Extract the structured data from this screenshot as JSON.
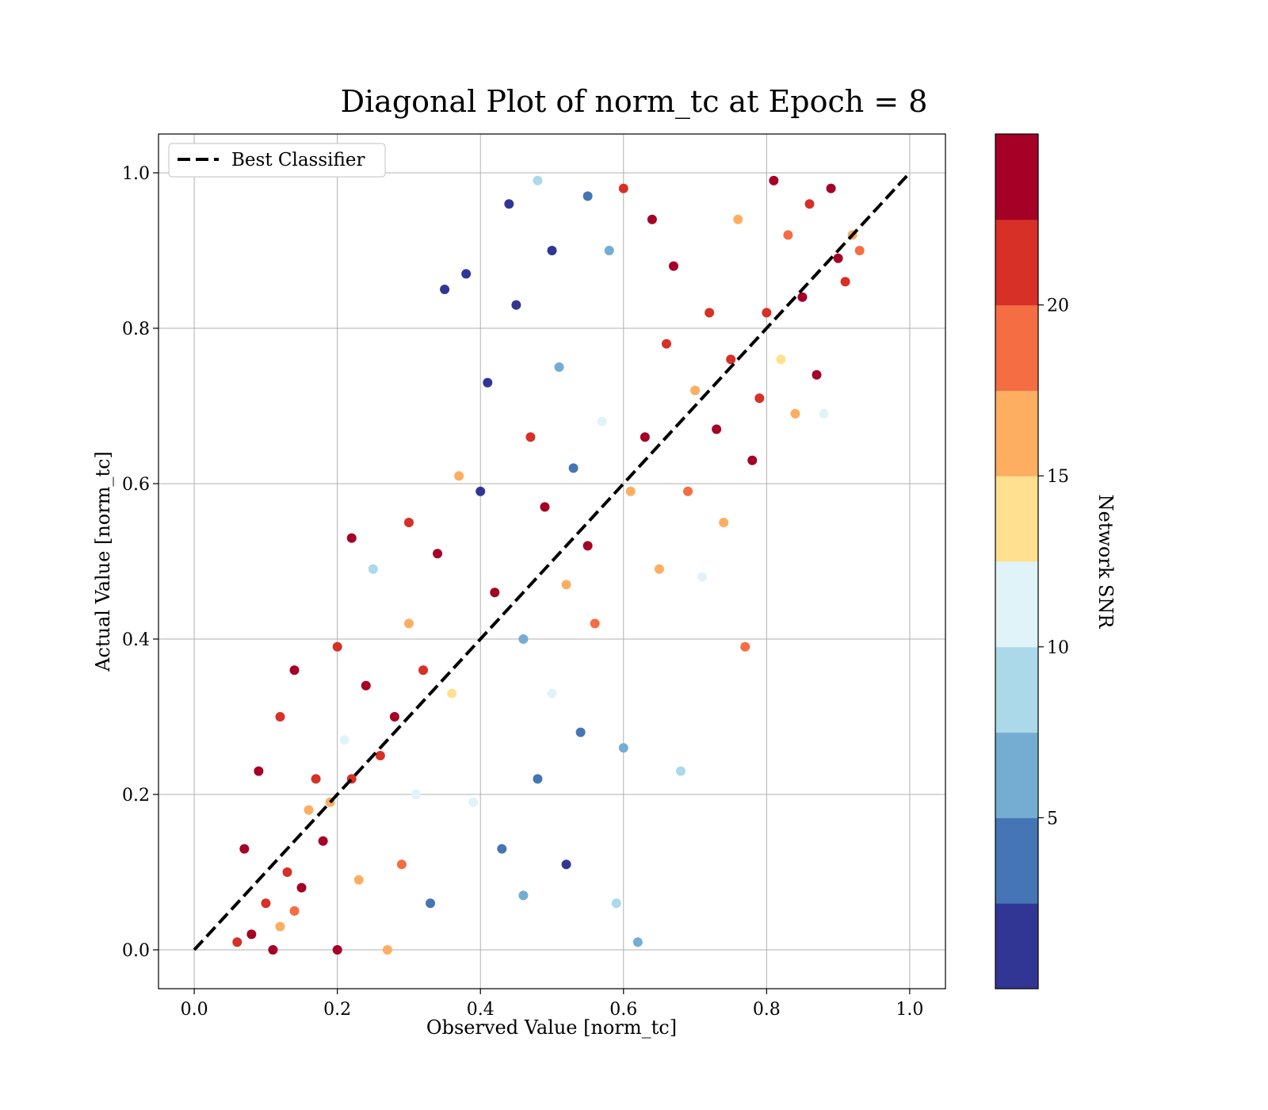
{
  "chart_data": {
    "type": "scatter",
    "title": "Diagonal Plot of norm_tc at Epoch = 8",
    "xlabel": "Observed Value [norm_tc]",
    "ylabel": "Actual Value [norm_tc]",
    "xlim": [
      -0.05,
      1.05
    ],
    "ylim": [
      -0.05,
      1.05
    ],
    "xticks": [
      "0.0",
      "0.2",
      "0.4",
      "0.6",
      "0.8",
      "1.0"
    ],
    "yticks": [
      "0.0",
      "0.2",
      "0.4",
      "0.6",
      "0.8",
      "1.0"
    ],
    "grid": true,
    "legend": {
      "position": "upper-left",
      "entries": [
        "Best Classifier"
      ]
    },
    "reference_line": {
      "name": "Best Classifier",
      "x": [
        0,
        1
      ],
      "y": [
        0,
        1
      ],
      "style": "dashed",
      "color": "#000000"
    },
    "colorbar": {
      "label": "Network SNR",
      "range": [
        0,
        25
      ],
      "tick_values": [
        5,
        10,
        15,
        20
      ],
      "tick_labels": [
        "5",
        "10",
        "15",
        "20"
      ],
      "colors": [
        "#313695",
        "#4575b4",
        "#74add1",
        "#abd9e9",
        "#e0f3f8",
        "#fee090",
        "#fdae61",
        "#f46d43",
        "#d73027",
        "#a50026"
      ]
    },
    "series": [
      {
        "color_by": "Network SNR",
        "points": [
          {
            "x": 0.06,
            "y": 0.01,
            "snr": 22
          },
          {
            "x": 0.08,
            "y": 0.02,
            "snr": 24
          },
          {
            "x": 0.07,
            "y": 0.13,
            "snr": 23
          },
          {
            "x": 0.09,
            "y": 0.23,
            "snr": 24
          },
          {
            "x": 0.1,
            "y": 0.06,
            "snr": 20
          },
          {
            "x": 0.12,
            "y": 0.03,
            "snr": 17
          },
          {
            "x": 0.13,
            "y": 0.1,
            "snr": 22
          },
          {
            "x": 0.11,
            "y": 0.0,
            "snr": 24
          },
          {
            "x": 0.14,
            "y": 0.05,
            "snr": 19
          },
          {
            "x": 0.15,
            "y": 0.08,
            "snr": 23
          },
          {
            "x": 0.12,
            "y": 0.3,
            "snr": 22
          },
          {
            "x": 0.14,
            "y": 0.36,
            "snr": 24
          },
          {
            "x": 0.16,
            "y": 0.18,
            "snr": 16
          },
          {
            "x": 0.17,
            "y": 0.22,
            "snr": 21
          },
          {
            "x": 0.18,
            "y": 0.14,
            "snr": 24
          },
          {
            "x": 0.19,
            "y": 0.19,
            "snr": 17
          },
          {
            "x": 0.2,
            "y": 0.0,
            "snr": 24
          },
          {
            "x": 0.2,
            "y": 0.39,
            "snr": 22
          },
          {
            "x": 0.21,
            "y": 0.27,
            "snr": 11
          },
          {
            "x": 0.22,
            "y": 0.22,
            "snr": 20
          },
          {
            "x": 0.22,
            "y": 0.53,
            "snr": 24
          },
          {
            "x": 0.23,
            "y": 0.09,
            "snr": 16
          },
          {
            "x": 0.24,
            "y": 0.34,
            "snr": 23
          },
          {
            "x": 0.25,
            "y": 0.49,
            "snr": 8
          },
          {
            "x": 0.26,
            "y": 0.25,
            "snr": 21
          },
          {
            "x": 0.27,
            "y": 0.0,
            "snr": 17
          },
          {
            "x": 0.28,
            "y": 0.3,
            "snr": 24
          },
          {
            "x": 0.29,
            "y": 0.11,
            "snr": 19
          },
          {
            "x": 0.3,
            "y": 0.42,
            "snr": 15
          },
          {
            "x": 0.3,
            "y": 0.55,
            "snr": 22
          },
          {
            "x": 0.31,
            "y": 0.2,
            "snr": 11
          },
          {
            "x": 0.32,
            "y": 0.36,
            "snr": 22
          },
          {
            "x": 0.33,
            "y": 0.06,
            "snr": 3
          },
          {
            "x": 0.34,
            "y": 0.51,
            "snr": 24
          },
          {
            "x": 0.35,
            "y": 0.85,
            "snr": 1
          },
          {
            "x": 0.36,
            "y": 0.33,
            "snr": 14
          },
          {
            "x": 0.37,
            "y": 0.61,
            "snr": 17
          },
          {
            "x": 0.38,
            "y": 0.87,
            "snr": 2
          },
          {
            "x": 0.39,
            "y": 0.19,
            "snr": 11
          },
          {
            "x": 0.4,
            "y": 0.59,
            "snr": 1
          },
          {
            "x": 0.41,
            "y": 0.73,
            "snr": 2
          },
          {
            "x": 0.42,
            "y": 0.46,
            "snr": 24
          },
          {
            "x": 0.43,
            "y": 0.13,
            "snr": 3
          },
          {
            "x": 0.44,
            "y": 0.96,
            "snr": 2
          },
          {
            "x": 0.45,
            "y": 0.83,
            "snr": 1
          },
          {
            "x": 0.46,
            "y": 0.4,
            "snr": 7
          },
          {
            "x": 0.46,
            "y": 0.07,
            "snr": 6
          },
          {
            "x": 0.47,
            "y": 0.66,
            "snr": 21
          },
          {
            "x": 0.48,
            "y": 0.99,
            "snr": 9
          },
          {
            "x": 0.48,
            "y": 0.22,
            "snr": 3
          },
          {
            "x": 0.49,
            "y": 0.57,
            "snr": 24
          },
          {
            "x": 0.5,
            "y": 0.9,
            "snr": 1
          },
          {
            "x": 0.5,
            "y": 0.33,
            "snr": 11
          },
          {
            "x": 0.51,
            "y": 0.75,
            "snr": 6
          },
          {
            "x": 0.52,
            "y": 0.11,
            "snr": 2
          },
          {
            "x": 0.52,
            "y": 0.47,
            "snr": 15
          },
          {
            "x": 0.53,
            "y": 0.62,
            "snr": 4
          },
          {
            "x": 0.54,
            "y": 0.28,
            "snr": 3
          },
          {
            "x": 0.55,
            "y": 0.97,
            "snr": 4
          },
          {
            "x": 0.55,
            "y": 0.52,
            "snr": 23
          },
          {
            "x": 0.56,
            "y": 0.42,
            "snr": 19
          },
          {
            "x": 0.57,
            "y": 0.68,
            "snr": 10
          },
          {
            "x": 0.58,
            "y": 0.9,
            "snr": 7
          },
          {
            "x": 0.59,
            "y": 0.06,
            "snr": 9
          },
          {
            "x": 0.6,
            "y": 0.26,
            "snr": 6
          },
          {
            "x": 0.6,
            "y": 0.98,
            "snr": 22
          },
          {
            "x": 0.61,
            "y": 0.59,
            "snr": 16
          },
          {
            "x": 0.62,
            "y": 0.01,
            "snr": 5
          },
          {
            "x": 0.63,
            "y": 0.66,
            "snr": 24
          },
          {
            "x": 0.64,
            "y": 0.94,
            "snr": 23
          },
          {
            "x": 0.65,
            "y": 0.49,
            "snr": 17
          },
          {
            "x": 0.66,
            "y": 0.78,
            "snr": 22
          },
          {
            "x": 0.67,
            "y": 0.88,
            "snr": 24
          },
          {
            "x": 0.68,
            "y": 0.23,
            "snr": 9
          },
          {
            "x": 0.69,
            "y": 0.59,
            "snr": 19
          },
          {
            "x": 0.7,
            "y": 0.72,
            "snr": 15
          },
          {
            "x": 0.71,
            "y": 0.48,
            "snr": 12
          },
          {
            "x": 0.72,
            "y": 0.82,
            "snr": 20
          },
          {
            "x": 0.73,
            "y": 0.67,
            "snr": 24
          },
          {
            "x": 0.74,
            "y": 0.55,
            "snr": 17
          },
          {
            "x": 0.75,
            "y": 0.76,
            "snr": 22
          },
          {
            "x": 0.76,
            "y": 0.94,
            "snr": 16
          },
          {
            "x": 0.77,
            "y": 0.39,
            "snr": 19
          },
          {
            "x": 0.78,
            "y": 0.63,
            "snr": 24
          },
          {
            "x": 0.79,
            "y": 0.71,
            "snr": 21
          },
          {
            "x": 0.8,
            "y": 0.82,
            "snr": 22
          },
          {
            "x": 0.81,
            "y": 0.99,
            "snr": 23
          },
          {
            "x": 0.82,
            "y": 0.76,
            "snr": 14
          },
          {
            "x": 0.83,
            "y": 0.92,
            "snr": 19
          },
          {
            "x": 0.84,
            "y": 0.69,
            "snr": 15
          },
          {
            "x": 0.85,
            "y": 0.84,
            "snr": 24
          },
          {
            "x": 0.86,
            "y": 0.96,
            "snr": 21
          },
          {
            "x": 0.87,
            "y": 0.74,
            "snr": 24
          },
          {
            "x": 0.88,
            "y": 0.69,
            "snr": 11
          },
          {
            "x": 0.89,
            "y": 0.98,
            "snr": 24
          },
          {
            "x": 0.9,
            "y": 0.89,
            "snr": 23
          },
          {
            "x": 0.91,
            "y": 0.86,
            "snr": 22
          },
          {
            "x": 0.92,
            "y": 0.92,
            "snr": 17
          },
          {
            "x": 0.93,
            "y": 0.9,
            "snr": 19
          }
        ]
      }
    ]
  }
}
